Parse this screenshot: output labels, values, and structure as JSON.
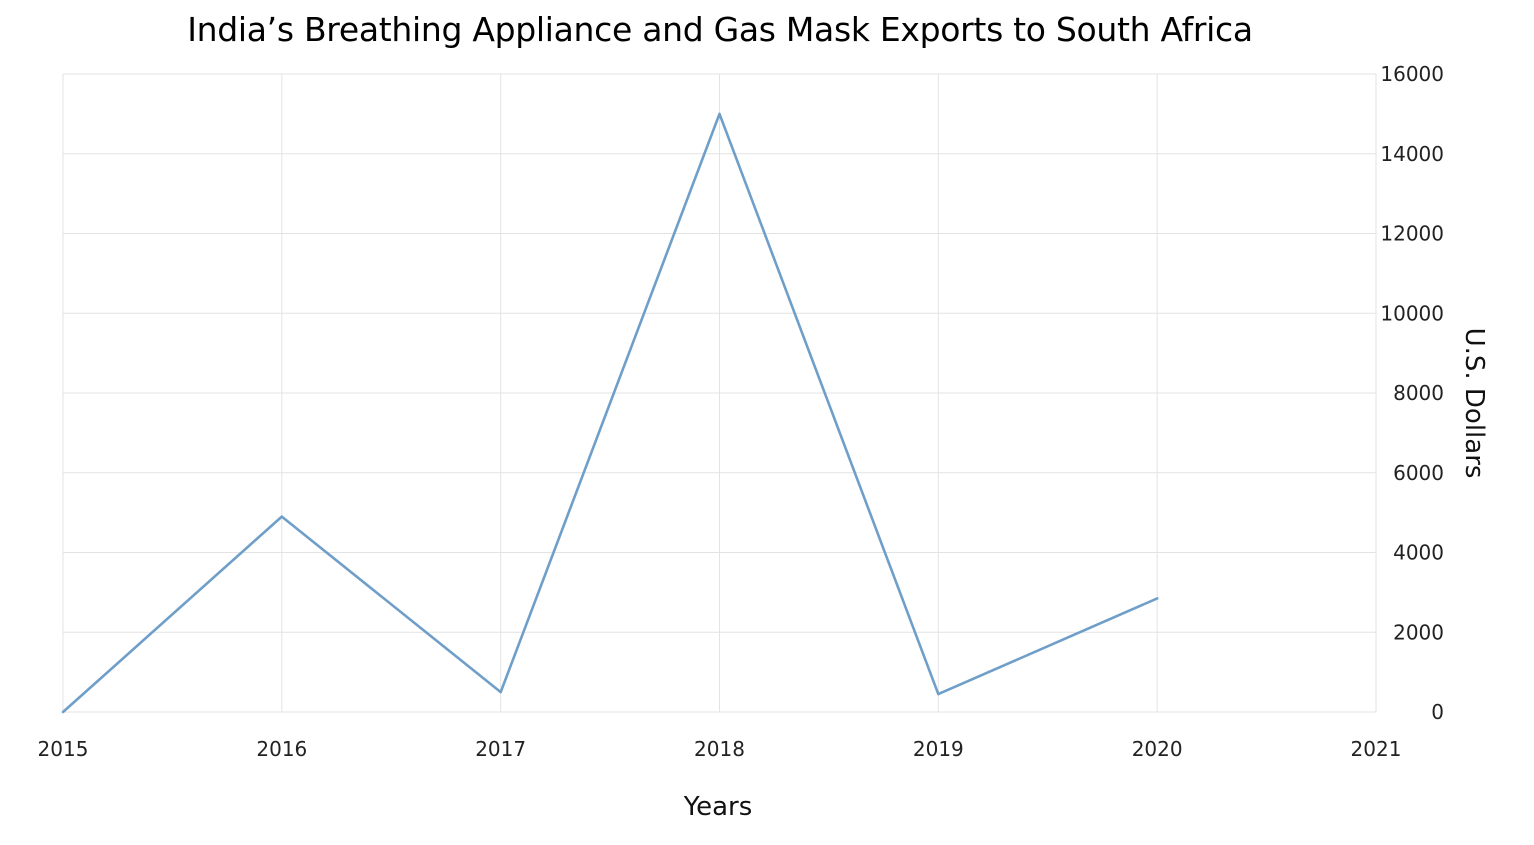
{
  "chart_data": {
    "type": "line",
    "title": "India’s Breathing Appliance and Gas Mask Exports to South Africa",
    "xlabel": "Years",
    "ylabel": "U.S. Dollars",
    "x_ticks": [
      "2015",
      "2016",
      "2017",
      "2018",
      "2019",
      "2020",
      "2021"
    ],
    "y_ticks": [
      "0",
      "2000",
      "4000",
      "6000",
      "8000",
      "10000",
      "12000",
      "14000",
      "16000"
    ],
    "xlim": [
      2015,
      2021
    ],
    "ylim": [
      0,
      16000
    ],
    "grid": true,
    "y_axis_position": "right",
    "series": [
      {
        "x": [
          2015,
          2016,
          2017,
          2018,
          2019,
          2020
        ],
        "values": [
          0,
          4900,
          500,
          15000,
          450,
          2850
        ],
        "color": "#6f9fc9"
      }
    ]
  }
}
